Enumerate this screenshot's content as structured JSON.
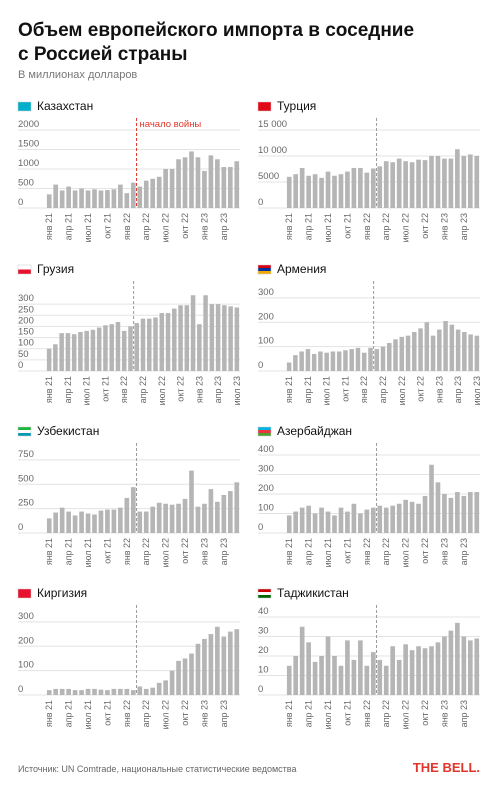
{
  "title": "Объем европейского импорта в соседние с Россией страны",
  "subtitle": "В миллионах долларов",
  "source": "Источник: UN Comtrade, национальные статистические ведомства",
  "logo": "THE BELL.",
  "chart_data": [
    {
      "type": "bar",
      "title": "Казахстан",
      "annotation": "начало войны",
      "color": "#b5b5b5",
      "grid": true,
      "categories": [
        "янв 21",
        null,
        null,
        "апр 21",
        null,
        null,
        "июл 21",
        null,
        null,
        "окт 21",
        null,
        null,
        "янв 22",
        null,
        null,
        "апр 22",
        null,
        null,
        "июл 22",
        null,
        null,
        "окт 22",
        null,
        null,
        "янв 23",
        null,
        null,
        "апр 23",
        null,
        null
      ],
      "values": [
        350,
        600,
        450,
        550,
        450,
        500,
        450,
        480,
        450,
        460,
        480,
        600,
        380,
        650,
        550,
        700,
        750,
        800,
        1000,
        1000,
        1250,
        1300,
        1450,
        1300,
        950,
        1350,
        1250,
        1050,
        1050,
        1200
      ],
      "ylim": [
        0,
        2000
      ],
      "yticks": [
        0,
        500,
        1000,
        1500,
        2000
      ]
    },
    {
      "type": "bar",
      "title": "Турция",
      "color": "#b5b5b5",
      "grid": true,
      "categories": [
        "янв 21",
        null,
        null,
        "апр 21",
        null,
        null,
        "июл 21",
        null,
        null,
        "окт 21",
        null,
        null,
        "янв 22",
        null,
        null,
        "апр 22",
        null,
        null,
        "июл 22",
        null,
        null,
        "окт 22",
        null,
        null,
        "янв 23",
        null,
        null,
        "апр 23",
        null,
        null
      ],
      "values": [
        6000,
        6500,
        7700,
        6200,
        6500,
        5800,
        7000,
        6200,
        6500,
        7000,
        7700,
        7700,
        6800,
        7600,
        8000,
        9000,
        8800,
        9500,
        9000,
        8800,
        9300,
        9200,
        10000,
        10000,
        9500,
        9500,
        11300,
        10000,
        10300,
        10000
      ],
      "ylim": [
        0,
        15000
      ],
      "yticks": [
        0,
        5000,
        {
          "value": 10000,
          "label": "10 000"
        },
        {
          "value": 15000,
          "label": "15 000"
        }
      ]
    },
    {
      "type": "bar",
      "title": "Грузия",
      "color": "#b5b5b5",
      "grid": true,
      "categories": [
        "янв 21",
        null,
        null,
        "апр 21",
        null,
        null,
        "июл 21",
        null,
        null,
        "окт 21",
        null,
        null,
        "янв 22",
        null,
        null,
        "апр 22",
        null,
        null,
        "июл 22",
        null,
        null,
        "окт 22",
        null,
        null,
        "янв 23",
        null,
        null,
        "апр 23",
        null,
        null,
        "июл 23"
      ],
      "values": [
        100,
        120,
        170,
        170,
        165,
        175,
        180,
        185,
        195,
        205,
        210,
        220,
        180,
        200,
        215,
        235,
        235,
        240,
        260,
        260,
        280,
        295,
        295,
        340,
        210,
        340,
        300,
        300,
        295,
        290,
        285
      ],
      "ylim": [
        0,
        350
      ],
      "yticks": [
        0,
        50,
        100,
        150,
        200,
        250,
        300
      ]
    },
    {
      "type": "bar",
      "title": "Армения",
      "color": "#b5b5b5",
      "grid": true,
      "categories": [
        "янв 21",
        null,
        null,
        "апр 21",
        null,
        null,
        "июл 21",
        null,
        null,
        "окт 21",
        null,
        null,
        "янв 22",
        null,
        null,
        "апр 22",
        null,
        null,
        "июл 22",
        null,
        null,
        "окт 22",
        null,
        null,
        "янв 23",
        null,
        null,
        "апр 23",
        null,
        null,
        "июл 23"
      ],
      "values": [
        35,
        65,
        80,
        90,
        70,
        80,
        75,
        80,
        80,
        85,
        90,
        95,
        75,
        95,
        90,
        100,
        115,
        130,
        140,
        145,
        160,
        175,
        200,
        145,
        170,
        205,
        190,
        170,
        160,
        150,
        145
      ],
      "ylim": [
        0,
        320
      ],
      "yticks": [
        0,
        100,
        200,
        300
      ]
    },
    {
      "type": "bar",
      "title": "Узбекистан",
      "color": "#b5b5b5",
      "grid": true,
      "categories": [
        "янв 21",
        null,
        null,
        "апр 21",
        null,
        null,
        "июл 21",
        null,
        null,
        "окт 21",
        null,
        null,
        "янв 22",
        null,
        null,
        "апр 22",
        null,
        null,
        "июл 22",
        null,
        null,
        "окт 22",
        null,
        null,
        "янв 23",
        null,
        null,
        "апр 23",
        null,
        null
      ],
      "values": [
        150,
        210,
        260,
        220,
        180,
        220,
        200,
        190,
        230,
        240,
        240,
        260,
        360,
        470,
        220,
        220,
        270,
        310,
        300,
        290,
        300,
        350,
        640,
        270,
        300,
        450,
        320,
        390,
        430,
        520
      ],
      "ylim": [
        0,
        800
      ],
      "yticks": [
        0,
        250,
        500,
        750
      ]
    },
    {
      "type": "bar",
      "title": "Азербайджан",
      "color": "#b5b5b5",
      "grid": true,
      "categories": [
        "янв 21",
        null,
        null,
        "апр 21",
        null,
        null,
        "июл 21",
        null,
        null,
        "окт 21",
        null,
        null,
        "янв 22",
        null,
        null,
        "апр 22",
        null,
        null,
        "июл 22",
        null,
        null,
        "окт 22",
        null,
        null,
        "янв 23",
        null,
        null,
        "апр 23",
        null,
        null
      ],
      "values": [
        90,
        110,
        130,
        140,
        100,
        130,
        110,
        90,
        130,
        110,
        150,
        100,
        120,
        130,
        140,
        130,
        140,
        150,
        170,
        160,
        150,
        190,
        350,
        260,
        200,
        180,
        210,
        190,
        210,
        210
      ],
      "ylim": [
        0,
        400
      ],
      "yticks": [
        0,
        100,
        200,
        300,
        400
      ]
    },
    {
      "type": "bar",
      "title": "Киргизия",
      "color": "#b5b5b5",
      "grid": true,
      "categories": [
        "янв 21",
        null,
        null,
        "апр 21",
        null,
        null,
        "июл 21",
        null,
        null,
        "окт 21",
        null,
        null,
        "янв 22",
        null,
        null,
        "апр 22",
        null,
        null,
        "июл 22",
        null,
        null,
        "окт 22",
        null,
        null,
        "янв 23",
        null,
        null,
        "апр 23",
        null,
        null
      ],
      "values": [
        20,
        25,
        25,
        25,
        20,
        20,
        25,
        25,
        22,
        20,
        25,
        25,
        25,
        20,
        35,
        25,
        30,
        50,
        60,
        100,
        140,
        150,
        170,
        210,
        230,
        250,
        280,
        240,
        260,
        270
      ],
      "ylim": [
        0,
        320
      ],
      "yticks": [
        0,
        100,
        200,
        300
      ]
    },
    {
      "type": "bar",
      "title": "Таджикистан",
      "color": "#b5b5b5",
      "grid": true,
      "categories": [
        "янв 21",
        null,
        null,
        "апр 21",
        null,
        null,
        "июл 21",
        null,
        null,
        "окт 21",
        null,
        null,
        "янв 22",
        null,
        null,
        "апр 22",
        null,
        null,
        "июл 22",
        null,
        null,
        "окт 22",
        null,
        null,
        "янв 23",
        null,
        null,
        "апр 23",
        null,
        null
      ],
      "values": [
        15,
        20,
        35,
        27,
        17,
        20,
        30,
        20,
        15,
        28,
        18,
        28,
        15,
        22,
        18,
        15,
        25,
        18,
        26,
        23,
        25,
        24,
        25,
        27,
        30,
        33,
        37,
        30,
        28,
        29
      ],
      "ylim": [
        0,
        40
      ],
      "yticks": [
        0,
        10,
        20,
        30,
        40
      ]
    }
  ]
}
